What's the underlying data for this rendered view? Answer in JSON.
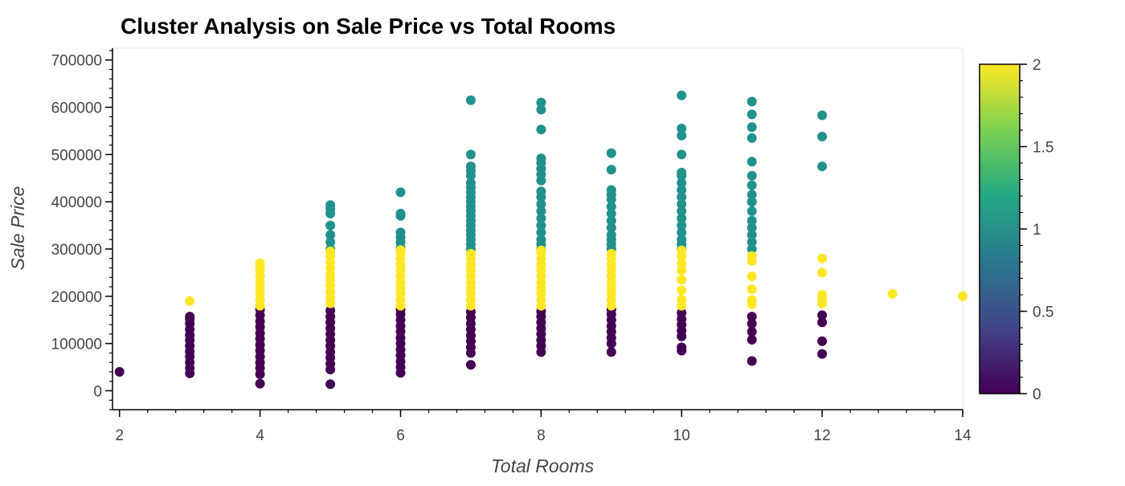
{
  "chart_data": {
    "type": "scatter",
    "title": "Cluster Analysis on Sale Price vs Total Rooms",
    "xlabel": "Total Rooms",
    "ylabel": "Sale Price",
    "xlim": [
      1.9,
      14
    ],
    "ylim": [
      -40000,
      725000
    ],
    "x_ticks": [
      2,
      4,
      6,
      8,
      10,
      12,
      14
    ],
    "y_ticks": [
      0,
      100000,
      200000,
      300000,
      400000,
      500000,
      600000,
      700000
    ],
    "grid": false,
    "colorbar": {
      "range": [
        0,
        2
      ],
      "ticks": [
        0,
        0.5,
        1,
        1.5,
        2
      ],
      "tick_labels": [
        "0",
        "0.5",
        "1",
        "1.5",
        "2"
      ],
      "colormap": "viridis",
      "stops": [
        "#440154",
        "#414487",
        "#2a788e",
        "#22a884",
        "#7ad151",
        "#fde725"
      ]
    },
    "clusters": [
      {
        "cluster": 0,
        "color": "#440154",
        "columns": [
          {
            "x": 2,
            "values": [
              40000
            ]
          },
          {
            "x": 3,
            "values": [
              37000,
              48000,
              60000,
              72000,
              83000,
              95000,
              107000,
              118000,
              130000,
              142000,
              152000,
              157000
            ]
          },
          {
            "x": 4,
            "values": [
              15000,
              35000,
              48000,
              60000,
              72000,
              85000,
              97000,
              110000,
              122000,
              135000,
              147000,
              160000,
              172000
            ]
          },
          {
            "x": 5,
            "values": [
              14000,
              45000,
              57000,
              70000,
              82000,
              95000,
              107000,
              120000,
              132000,
              145000,
              157000,
              170000
            ]
          },
          {
            "x": 6,
            "values": [
              38000,
              50000,
              62000,
              75000,
              87000,
              100000,
              112000,
              125000,
              137000,
              150000,
              162000,
              172000
            ]
          },
          {
            "x": 7,
            "values": [
              55000,
              80000,
              92000,
              105000,
              117000,
              130000,
              142000,
              155000,
              167000
            ]
          },
          {
            "x": 8,
            "values": [
              82000,
              95000,
              107000,
              120000,
              132000,
              145000,
              157000,
              168000
            ]
          },
          {
            "x": 9,
            "values": [
              82000,
              100000,
              112000,
              125000,
              137000,
              150000,
              162000,
              172000
            ]
          },
          {
            "x": 10,
            "values": [
              85000,
              92000,
              115000,
              127000,
              140000,
              152000,
              165000
            ]
          },
          {
            "x": 11,
            "values": [
              63000,
              108000,
              125000,
              142000,
              157000
            ]
          },
          {
            "x": 12,
            "values": [
              78000,
              105000,
              145000,
              160000
            ]
          }
        ]
      },
      {
        "cluster": 1,
        "color": "#21918c",
        "columns": [
          {
            "x": 5,
            "values": [
              300000,
              315000,
              330000,
              350000,
              375000,
              385000,
              393000
            ]
          },
          {
            "x": 6,
            "values": [
              303000,
              315000,
              325000,
              335000,
              370000,
              375000,
              420000
            ]
          },
          {
            "x": 7,
            "values": [
              300000,
              310000,
              320000,
              330000,
              340000,
              350000,
              360000,
              370000,
              380000,
              390000,
              400000,
              410000,
              420000,
              430000,
              440000,
              455000,
              465000,
              475000,
              500000,
              615000
            ]
          },
          {
            "x": 8,
            "values": [
              300000,
              310000,
              320000,
              335000,
              350000,
              365000,
              380000,
              395000,
              410000,
              422000,
              445000,
              458000,
              470000,
              482000,
              492000,
              553000,
              595000,
              610000
            ]
          },
          {
            "x": 9,
            "values": [
              300000,
              310000,
              320000,
              330000,
              345000,
              360000,
              375000,
              390000,
              405000,
              415000,
              425000,
              468000,
              503000
            ]
          },
          {
            "x": 10,
            "values": [
              300000,
              310000,
              320000,
              335000,
              350000,
              365000,
              380000,
              395000,
              410000,
              425000,
              440000,
              455000,
              462000,
              500000,
              540000,
              555000,
              625000
            ]
          },
          {
            "x": 11,
            "values": [
              300000,
              315000,
              330000,
              345000,
              360000,
              380000,
              400000,
              415000,
              435000,
              455000,
              485000,
              535000,
              558000,
              585000,
              612000
            ]
          },
          {
            "x": 12,
            "values": [
              475000,
              538000,
              583000
            ]
          }
        ]
      },
      {
        "cluster": 2,
        "color": "#fde725",
        "columns": [
          {
            "x": 3,
            "values": [
              190000
            ]
          },
          {
            "x": 4,
            "values": [
              180000,
              192000,
              205000,
              217000,
              230000,
              242000,
              255000,
              262000,
              270000
            ]
          },
          {
            "x": 5,
            "values": [
              185000,
              197000,
              210000,
              222000,
              235000,
              247000,
              260000,
              272000,
              285000,
              295000
            ]
          },
          {
            "x": 6,
            "values": [
              180000,
              192000,
              205000,
              217000,
              230000,
              242000,
              255000,
              267000,
              280000,
              292000,
              298000
            ]
          },
          {
            "x": 7,
            "values": [
              180000,
              192000,
              205000,
              217000,
              230000,
              242000,
              255000,
              267000,
              280000,
              290000
            ]
          },
          {
            "x": 8,
            "values": [
              180000,
              192000,
              205000,
              217000,
              230000,
              242000,
              255000,
              267000,
              280000,
              292000,
              297000
            ]
          },
          {
            "x": 9,
            "values": [
              180000,
              192000,
              205000,
              217000,
              230000,
              242000,
              255000,
              267000,
              280000,
              290000
            ]
          },
          {
            "x": 10,
            "values": [
              180000,
              193000,
              213000,
              235000,
              255000,
              270000,
              285000,
              297000
            ]
          },
          {
            "x": 11,
            "values": [
              183000,
              192000,
              215000,
              242000,
              275000,
              285000
            ]
          },
          {
            "x": 12,
            "values": [
              185000,
              195000,
              203000,
              250000,
              280000
            ]
          },
          {
            "x": 13,
            "values": [
              205000
            ]
          },
          {
            "x": 14,
            "values": [
              200000
            ]
          }
        ]
      }
    ]
  }
}
